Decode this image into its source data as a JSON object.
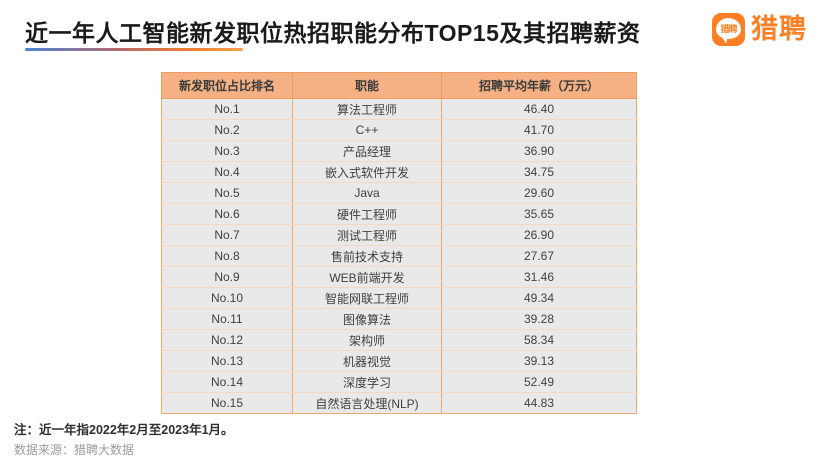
{
  "title": "近一年人工智能新发职位热招职能分布TOP15及其招聘薪资",
  "logo": {
    "brand": "猎聘",
    "bubble_text": "猎聘",
    "color": "#fd7e23"
  },
  "notes": {
    "note": "注：近一年指2022年2月至2023年1月。",
    "source": "数据来源：猎聘大数据"
  },
  "colors": {
    "accent_orange": "#fd7e23",
    "table_header_bg": "#f5b183",
    "table_border": "#f0a96d",
    "row_bg": "#e9e9eb",
    "underline_gradient_start": "#4a86d3",
    "underline_gradient_end": "#f6a14b"
  },
  "chart_data": {
    "type": "table",
    "title": "近一年人工智能新发职位热招职能分布TOP15及其招聘薪资",
    "columns": [
      "新发职位占比排名",
      "职能",
      "招聘平均年薪（万元）"
    ],
    "rows": [
      [
        "No.1",
        "算法工程师",
        "46.40"
      ],
      [
        "No.2",
        "C++",
        "41.70"
      ],
      [
        "No.3",
        "产品经理",
        "36.90"
      ],
      [
        "No.4",
        "嵌入式软件开发",
        "34.75"
      ],
      [
        "No.5",
        "Java",
        "29.60"
      ],
      [
        "No.6",
        "硬件工程师",
        "35.65"
      ],
      [
        "No.7",
        "测试工程师",
        "26.90"
      ],
      [
        "No.8",
        "售前技术支持",
        "27.67"
      ],
      [
        "No.9",
        "WEB前端开发",
        "31.46"
      ],
      [
        "No.10",
        "智能网联工程师",
        "49.34"
      ],
      [
        "No.11",
        "图像算法",
        "39.28"
      ],
      [
        "No.12",
        "架构师",
        "58.34"
      ],
      [
        "No.13",
        "机器视觉",
        "39.13"
      ],
      [
        "No.14",
        "深度学习",
        "52.49"
      ],
      [
        "No.15",
        "自然语言处理(NLP)",
        "44.83"
      ]
    ],
    "categories": [
      "算法工程师",
      "C++",
      "产品经理",
      "嵌入式软件开发",
      "Java",
      "硬件工程师",
      "测试工程师",
      "售前技术支持",
      "WEB前端开发",
      "智能网联工程师",
      "图像算法",
      "架构师",
      "机器视觉",
      "深度学习",
      "自然语言处理(NLP)"
    ],
    "values": [
      46.4,
      41.7,
      36.9,
      34.75,
      29.6,
      35.65,
      26.9,
      27.67,
      31.46,
      49.34,
      39.28,
      58.34,
      39.13,
      52.49,
      44.83
    ],
    "value_unit": "万元",
    "legend": "none",
    "grid": "table-borders"
  }
}
